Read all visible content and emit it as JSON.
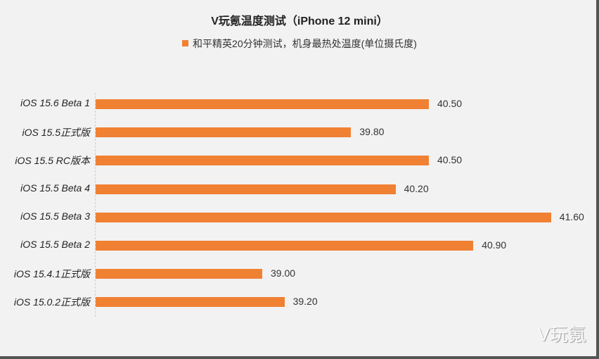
{
  "title": "V玩氪温度测试（iPhone 12 mini）",
  "legend": {
    "label": "和平精英20分钟测试，机身最热处温度(单位摄氏度)",
    "color": "#f08133"
  },
  "watermark": "V玩氪",
  "chart_data": {
    "type": "bar",
    "orientation": "horizontal",
    "title": "V玩氪温度测试（iPhone 12 mini）",
    "xlabel": "",
    "ylabel": "",
    "categories": [
      "iOS 15.6 Beta 1",
      "iOS 15.5正式版",
      "iOS 15.5 RC版本",
      "iOS 15.5 Beta 4",
      "iOS 15.5 Beta 3",
      "iOS 15.5 Beta 2",
      "iOS 15.4.1正式版",
      "iOS 15.0.2正式版"
    ],
    "series": [
      {
        "name": "和平精英20分钟测试，机身最热处温度(单位摄氏度)",
        "values": [
          40.5,
          39.8,
          40.5,
          40.2,
          41.6,
          40.9,
          39.0,
          39.2
        ],
        "color": "#f08133"
      }
    ],
    "value_labels": [
      "40.50",
      "39.80",
      "40.50",
      "40.20",
      "41.60",
      "40.90",
      "39.00",
      "39.20"
    ],
    "xlim": [
      37.5,
      42
    ],
    "grid": false,
    "legend_position": "top"
  }
}
